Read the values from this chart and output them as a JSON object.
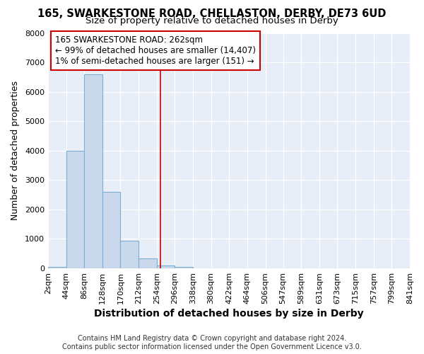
{
  "title": "165, SWARKESTONE ROAD, CHELLASTON, DERBY, DE73 6UD",
  "subtitle": "Size of property relative to detached houses in Derby",
  "xlabel": "Distribution of detached houses by size in Derby",
  "ylabel": "Number of detached properties",
  "bar_color": "#c9d9eb",
  "bar_edge_color": "#7bafd4",
  "background_color": "#ffffff",
  "plot_bg_color": "#e8eef7",
  "grid_color": "#ffffff",
  "bin_edges": [
    2,
    44,
    86,
    128,
    170,
    212,
    254,
    296,
    338,
    380,
    422,
    464,
    506,
    547,
    589,
    631,
    673,
    715,
    757,
    799,
    841
  ],
  "bin_labels": [
    "2sqm",
    "44sqm",
    "86sqm",
    "128sqm",
    "170sqm",
    "212sqm",
    "254sqm",
    "296sqm",
    "338sqm",
    "380sqm",
    "422sqm",
    "464sqm",
    "506sqm",
    "547sqm",
    "589sqm",
    "631sqm",
    "673sqm",
    "715sqm",
    "757sqm",
    "799sqm",
    "841sqm"
  ],
  "counts": [
    50,
    4000,
    6600,
    2600,
    950,
    330,
    100,
    50,
    0,
    0,
    0,
    0,
    0,
    0,
    0,
    0,
    0,
    0,
    0,
    0
  ],
  "ylim": [
    0,
    8000
  ],
  "yticks": [
    0,
    1000,
    2000,
    3000,
    4000,
    5000,
    6000,
    7000,
    8000
  ],
  "property_line_x": 262,
  "property_line_color": "#cc0000",
  "annotation_line1": "165 SWARKESTONE ROAD: 262sqm",
  "annotation_line2": "← 99% of detached houses are smaller (14,407)",
  "annotation_line3": "1% of semi-detached houses are larger (151) →",
  "footer_line1": "Contains HM Land Registry data © Crown copyright and database right 2024.",
  "footer_line2": "Contains public sector information licensed under the Open Government Licence v3.0.",
  "title_fontsize": 10.5,
  "subtitle_fontsize": 9.5,
  "xlabel_fontsize": 10,
  "ylabel_fontsize": 9,
  "tick_fontsize": 8,
  "annotation_fontsize": 8.5,
  "footer_fontsize": 7
}
